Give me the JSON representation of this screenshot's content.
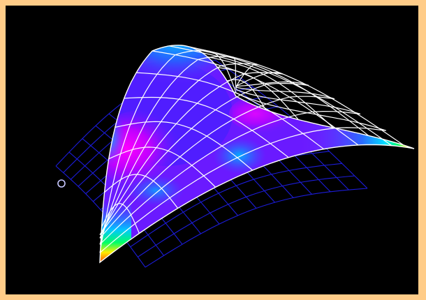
{
  "app": {
    "title": ""
  },
  "viewer": {
    "background_color": "#000000",
    "frame_color": "#ffcc88",
    "undeformed_mesh_color": "#1c1cd8",
    "deformed_mesh_line_color": "#ffffff",
    "node_marker_color": "#c8c8ff",
    "colormap": [
      "#0000ff",
      "#6a1aff",
      "#ff00ff",
      "#00c8ff",
      "#00ff66",
      "#ffee00",
      "#ff2200"
    ],
    "objects": {
      "undeformed_mesh": "wireframe",
      "deformed_surface": "contour-shaded-shell",
      "node_marker": "selected-node-marker"
    }
  }
}
